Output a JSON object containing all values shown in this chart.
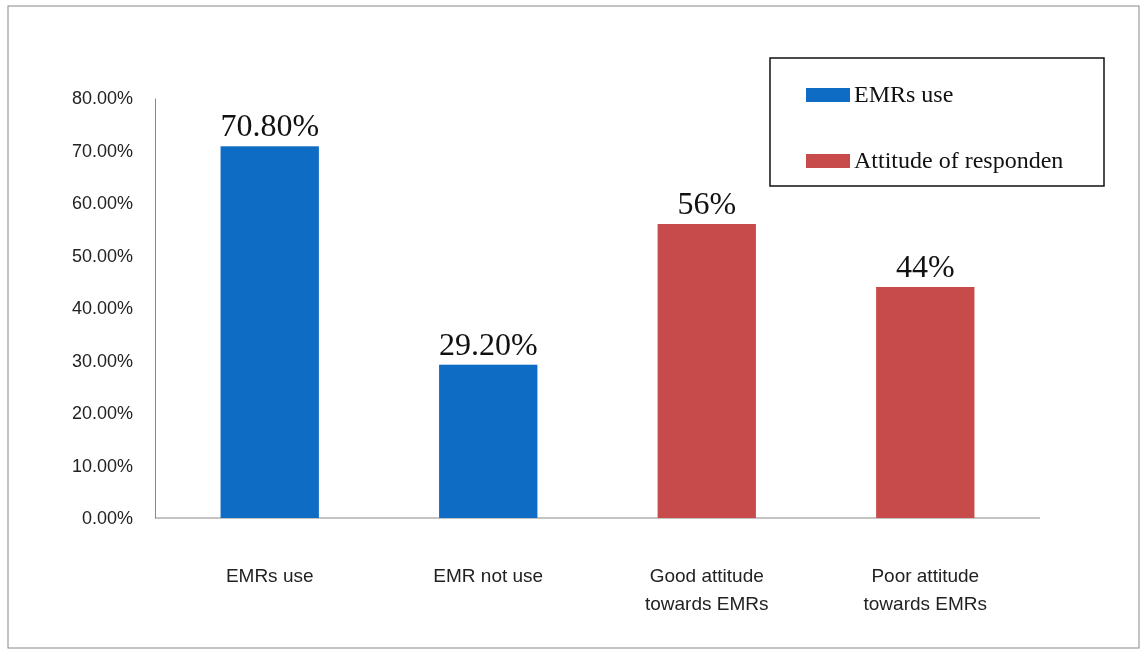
{
  "chart_data": {
    "type": "bar",
    "categories": [
      "EMRs use",
      "EMR not use",
      "Good attitude towards EMRs",
      "Poor attitude towards EMRs"
    ],
    "series": [
      {
        "name": "EMRs use",
        "color": "#0f6cc4",
        "values": [
          70.8,
          29.2,
          null,
          null
        ],
        "value_labels": [
          "70.80%",
          "29.20%",
          null,
          null
        ]
      },
      {
        "name": "Attitude of responden",
        "color": "#c84b4b",
        "values": [
          null,
          null,
          56,
          44
        ],
        "value_labels": [
          null,
          null,
          "56%",
          "44%"
        ]
      }
    ],
    "ylim": [
      0,
      80
    ],
    "yticks": [
      {
        "value": 0,
        "label": "0.00%"
      },
      {
        "value": 10,
        "label": "10.00%"
      },
      {
        "value": 20,
        "label": "20.00%"
      },
      {
        "value": 30,
        "label": "30.00%"
      },
      {
        "value": 40,
        "label": "40.00%"
      },
      {
        "value": 50,
        "label": "50.00%"
      },
      {
        "value": 60,
        "label": "60.00%"
      },
      {
        "value": 70,
        "label": "70.00%"
      },
      {
        "value": 80,
        "label": "80.00%"
      }
    ],
    "grid": false,
    "legend": "top right"
  }
}
